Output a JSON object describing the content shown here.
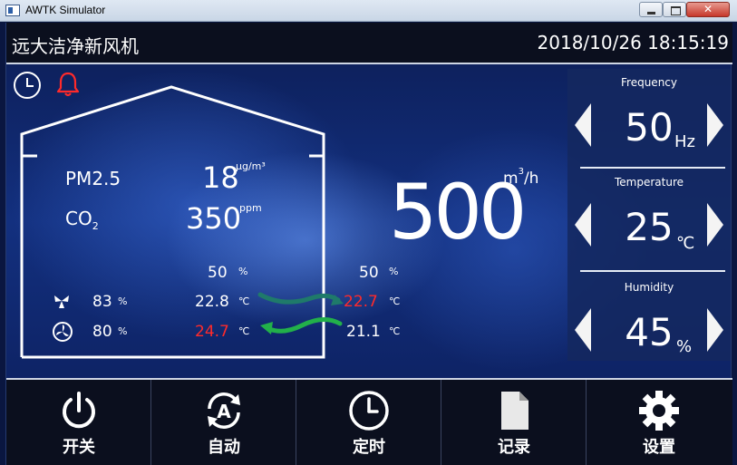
{
  "window": {
    "title": "AWTK Simulator"
  },
  "header": {
    "title": "远大洁净新风机",
    "datetime": "2018/10/26 18:15:19"
  },
  "indoor": {
    "pm25_label": "PM2.5",
    "pm25_value": "18",
    "pm25_unit": "μg/m³",
    "co2_label": "CO",
    "co2_sub": "2",
    "co2_value": "350",
    "co2_unit": "ppm",
    "humidity_inner": "50",
    "humidity_outer": "50",
    "pct_unit": "%",
    "fan1_pct": "83",
    "fan2_pct": "80",
    "temp_in_1": "22.8",
    "temp_in_2": "24.7",
    "temp_out_1": "22.7",
    "temp_out_2": "21.1",
    "temp_unit": "℃"
  },
  "flow": {
    "value": "500",
    "unit_base": "m",
    "unit_exp": "3",
    "unit_tail": "/h"
  },
  "controls": {
    "frequency": {
      "label": "Frequency",
      "value": "50",
      "unit": "Hz"
    },
    "temperature": {
      "label": "Temperature",
      "value": "25",
      "unit": "℃"
    },
    "humidity": {
      "label": "Humidity",
      "value": "45",
      "unit": "%"
    }
  },
  "nav": [
    {
      "label": "开关",
      "icon": "power-icon"
    },
    {
      "label": "自动",
      "icon": "auto-icon"
    },
    {
      "label": "定时",
      "icon": "clock-icon"
    },
    {
      "label": "记录",
      "icon": "document-icon"
    },
    {
      "label": "设置",
      "icon": "gear-icon"
    }
  ],
  "colors": {
    "alert": "#ff2a2a",
    "arrow_green": "#22b04a",
    "arrow_teal": "#1f7a6a"
  }
}
